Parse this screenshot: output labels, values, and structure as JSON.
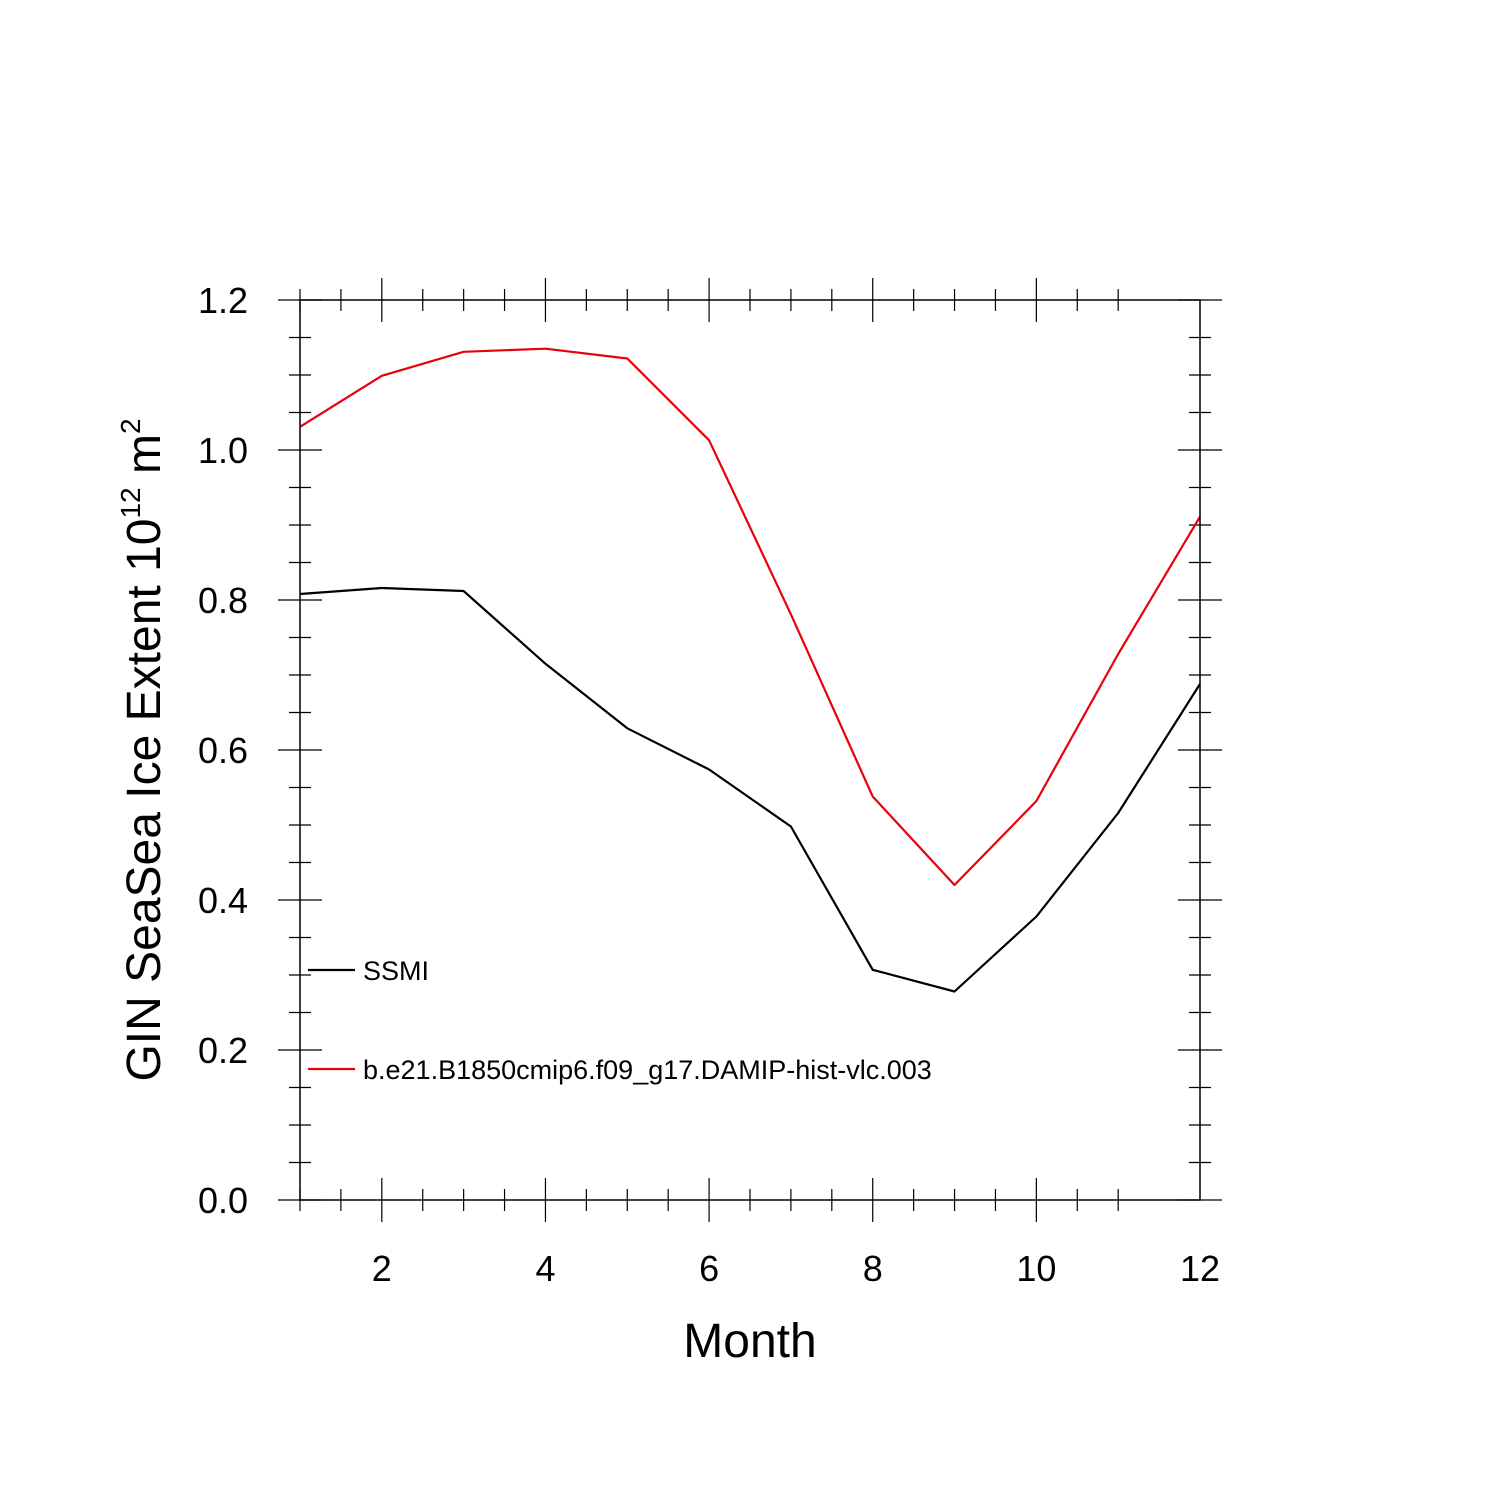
{
  "chart_data": {
    "type": "line",
    "title": "",
    "xlabel": "Month",
    "ylabel": {
      "text": "GIN SeaSea Ice Extent 10",
      "superscript_power": "12",
      "unit": " m",
      "superscript_unit": "2"
    },
    "xlim": [
      1,
      12
    ],
    "ylim": [
      0,
      1.2
    ],
    "xticks": [
      2,
      4,
      6,
      8,
      10,
      12
    ],
    "xtick_labels": [
      "2",
      "4",
      "6",
      "8",
      "10",
      "12"
    ],
    "yticks": [
      0,
      0.2,
      0.4,
      0.6,
      0.8,
      1.0,
      1.2
    ],
    "ytick_labels": [
      "0.0",
      "0.2",
      "0.4",
      "0.6",
      "0.8",
      "1.0",
      "1.2"
    ],
    "grid": false,
    "legend_position": "left",
    "x": [
      1,
      2,
      3,
      4,
      5,
      6,
      7,
      8,
      9,
      10,
      11,
      12
    ],
    "series": [
      {
        "name": "SSMI",
        "color": "#000000",
        "values": [
          0.808,
          0.816,
          0.812,
          0.715,
          0.629,
          0.574,
          0.498,
          0.307,
          0.278,
          0.378,
          0.516,
          0.688
        ]
      },
      {
        "name": "b.e21.B1850cmip6.f09_g17.DAMIP-hist-vlc.003",
        "color": "#e8000b",
        "values": [
          1.031,
          1.099,
          1.131,
          1.135,
          1.122,
          1.013,
          0.781,
          0.538,
          0.42,
          0.532,
          0.728,
          0.911
        ]
      }
    ]
  }
}
